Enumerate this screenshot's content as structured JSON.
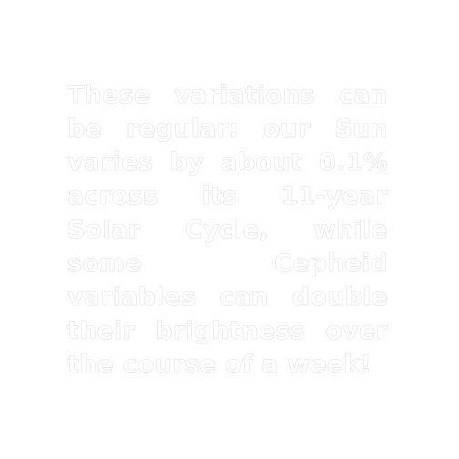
{
  "caption": {
    "text": "These variations can be regular: our Sun varies by about 0.1% across its 11-year Solar Cycle, while some Cepheid variables can double their brightness over the course of a week!"
  },
  "colors": {
    "background": "#ffffff",
    "text_fill": "#ffffff",
    "text_outline": "#e6e6e6"
  }
}
